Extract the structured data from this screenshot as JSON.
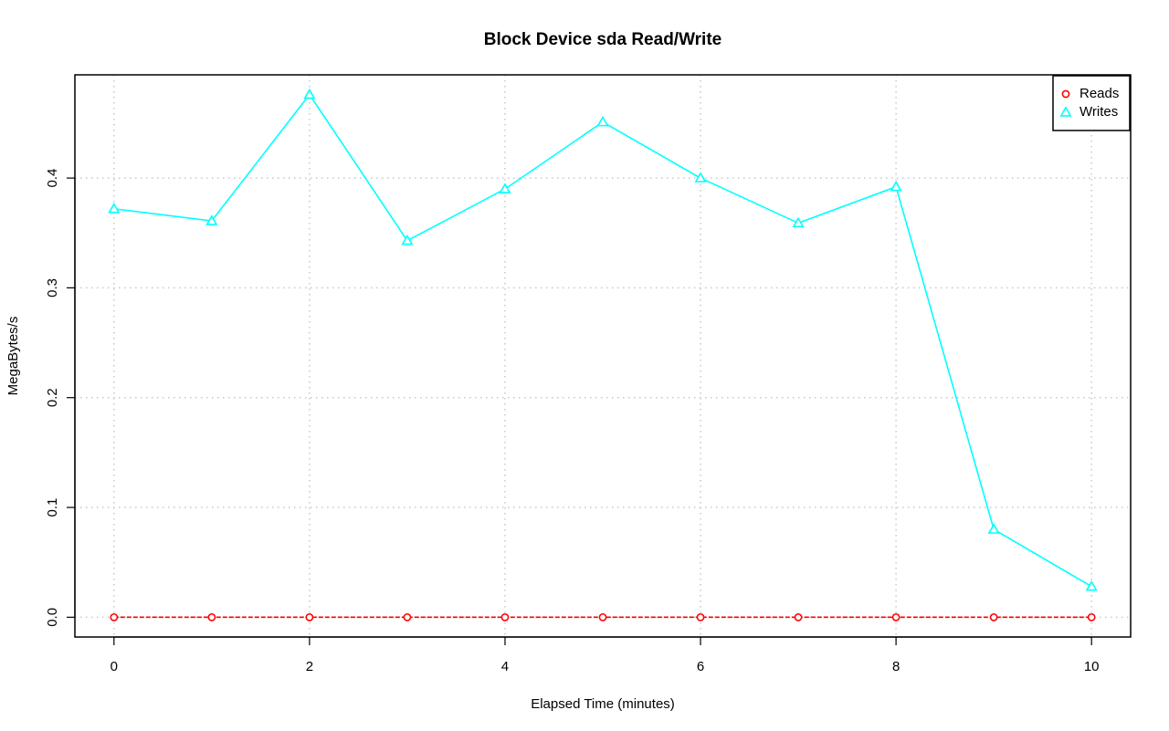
{
  "chart_data": {
    "type": "line",
    "title": "Block Device sda Read/Write",
    "xlabel": "Elapsed Time (minutes)",
    "ylabel": "MegaBytes/s",
    "x": [
      0,
      1,
      2,
      3,
      4,
      5,
      6,
      7,
      8,
      9,
      10
    ],
    "xlim": [
      -0.4,
      10.4
    ],
    "ylim": [
      -0.018,
      0.494
    ],
    "x_ticks": [
      0,
      2,
      4,
      6,
      8,
      10
    ],
    "x_tick_labels": [
      "0",
      "2",
      "4",
      "6",
      "8",
      "10"
    ],
    "y_ticks": [
      0.0,
      0.1,
      0.2,
      0.3,
      0.4
    ],
    "y_tick_labels": [
      "0.0",
      "0.1",
      "0.2",
      "0.3",
      "0.4"
    ],
    "grid": true,
    "legend_position": "top-right",
    "series": [
      {
        "name": "Reads",
        "color": "#ff0000",
        "marker": "circle",
        "line": "dashed",
        "values": [
          0,
          0,
          0,
          0,
          0,
          0,
          0,
          0,
          0,
          0,
          0
        ]
      },
      {
        "name": "Writes",
        "color": "#00ffff",
        "marker": "triangle",
        "line": "solid",
        "values": [
          0.372,
          0.361,
          0.476,
          0.343,
          0.39,
          0.451,
          0.4,
          0.359,
          0.392,
          0.08,
          0.028
        ]
      }
    ]
  }
}
